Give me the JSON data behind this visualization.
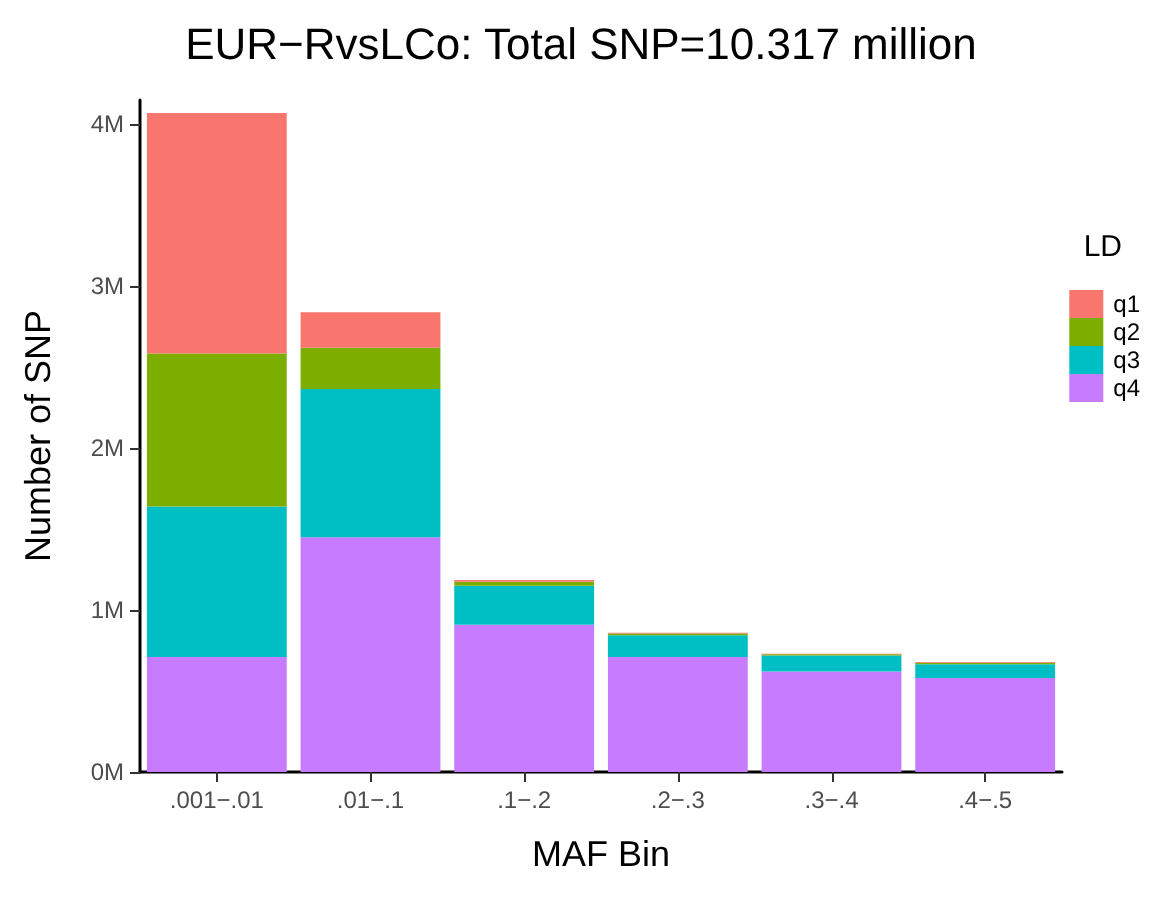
{
  "chart_data": {
    "type": "bar",
    "title": "EUR−RvsLCo: Total SNP=10.317 million",
    "xlabel": "MAF Bin",
    "ylabel": "Number of SNP",
    "legend_title": "LD",
    "categories": [
      ".001−.01",
      ".01−.1",
      ".1−.2",
      ".2−.3",
      ".3−.4",
      ".4−.5"
    ],
    "stacked": true,
    "series": [
      {
        "name": "q4",
        "color": "#c77cff",
        "values": [
          710000,
          1450000,
          910000,
          710000,
          620000,
          580000
        ]
      },
      {
        "name": "q3",
        "color": "#00bfc4",
        "values": [
          930000,
          915000,
          240000,
          135000,
          100000,
          85000
        ]
      },
      {
        "name": "q2",
        "color": "#7cae00",
        "values": [
          945000,
          255000,
          25000,
          10000,
          7000,
          10000
        ]
      },
      {
        "name": "q1",
        "color": "#f8766d",
        "values": [
          1485000,
          220000,
          10000,
          5000,
          3000,
          5000
        ]
      }
    ],
    "ylim": [
      0,
      4150000
    ],
    "yticks": [
      {
        "value": 0,
        "label": "0M"
      },
      {
        "value": 1000000,
        "label": "1M"
      },
      {
        "value": 2000000,
        "label": "2M"
      },
      {
        "value": 3000000,
        "label": "3M"
      },
      {
        "value": 4000000,
        "label": "4M"
      }
    ],
    "grid": false,
    "legend": "right"
  }
}
